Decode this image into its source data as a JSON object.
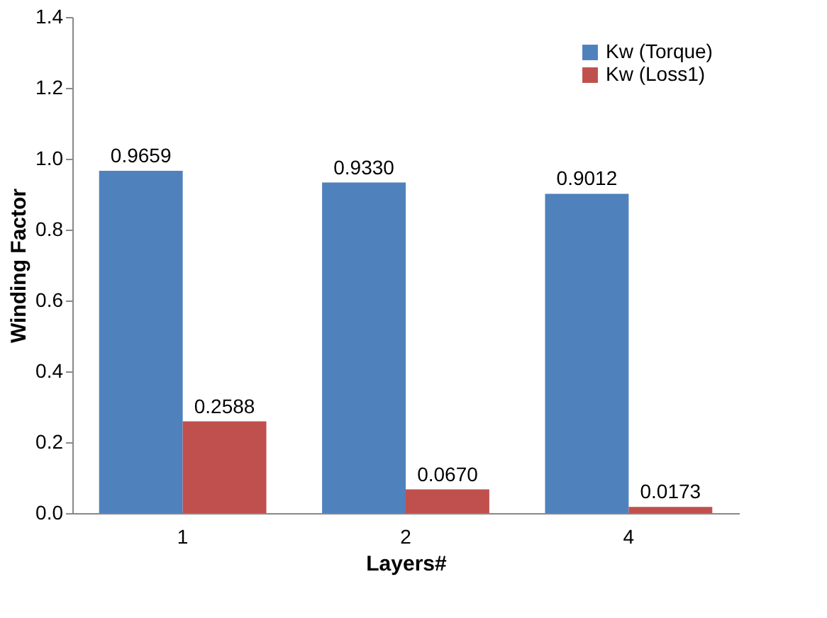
{
  "chart_data": {
    "type": "bar",
    "xlabel": "Layers#",
    "ylabel": "Winding Factor",
    "categories": [
      "1",
      "2",
      "4"
    ],
    "series": [
      {
        "name": "Kw (Torque)",
        "color": "#4f81bd",
        "values": [
          0.9659,
          0.933,
          0.9012
        ],
        "value_labels": [
          "0.9659",
          "0.9330",
          "0.9012"
        ]
      },
      {
        "name": "Kw (Loss1)",
        "color": "#c0504d",
        "values": [
          0.2588,
          0.067,
          0.0173
        ],
        "value_labels": [
          "0.2588",
          "0.0670",
          "0.0173"
        ]
      }
    ],
    "ylim": [
      0,
      1.4
    ],
    "yticks": [
      {
        "value": 0,
        "label": "0.0"
      },
      {
        "value": 0.2,
        "label": "0.2"
      },
      {
        "value": 0.4,
        "label": "0.4"
      },
      {
        "value": 0.6,
        "label": "0.6"
      },
      {
        "value": 0.8,
        "label": "0.8"
      },
      {
        "value": 1.0,
        "label": "1.0"
      },
      {
        "value": 1.2,
        "label": "1.2"
      },
      {
        "value": 1.4,
        "label": "1.4"
      }
    ],
    "grid": false,
    "legend": "top right"
  }
}
